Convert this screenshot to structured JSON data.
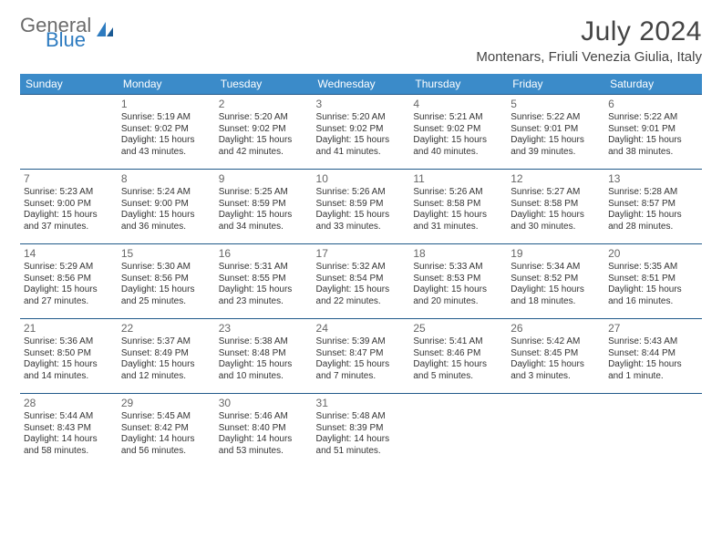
{
  "brand": {
    "line1": "General",
    "line2": "Blue"
  },
  "title": "July 2024",
  "location": "Montenars, Friuli Venezia Giulia, Italy",
  "colors": {
    "header_bg": "#3b8bc9",
    "header_text": "#ffffff",
    "row_border": "#215a8a",
    "daynum_color": "#666666",
    "body_text": "#333333",
    "logo_gray": "#6b6b6b",
    "logo_blue": "#2d7bc0",
    "page_bg": "#ffffff"
  },
  "fonts": {
    "title_size_pt": 22,
    "location_size_pt": 11,
    "weekday_size_pt": 9,
    "daynum_size_pt": 9,
    "body_size_pt": 7.5
  },
  "weekdays": [
    "Sunday",
    "Monday",
    "Tuesday",
    "Wednesday",
    "Thursday",
    "Friday",
    "Saturday"
  ],
  "weeks": [
    [
      null,
      {
        "n": "1",
        "sr": "5:19 AM",
        "ss": "9:02 PM",
        "dl": "15 hours and 43 minutes."
      },
      {
        "n": "2",
        "sr": "5:20 AM",
        "ss": "9:02 PM",
        "dl": "15 hours and 42 minutes."
      },
      {
        "n": "3",
        "sr": "5:20 AM",
        "ss": "9:02 PM",
        "dl": "15 hours and 41 minutes."
      },
      {
        "n": "4",
        "sr": "5:21 AM",
        "ss": "9:02 PM",
        "dl": "15 hours and 40 minutes."
      },
      {
        "n": "5",
        "sr": "5:22 AM",
        "ss": "9:01 PM",
        "dl": "15 hours and 39 minutes."
      },
      {
        "n": "6",
        "sr": "5:22 AM",
        "ss": "9:01 PM",
        "dl": "15 hours and 38 minutes."
      }
    ],
    [
      {
        "n": "7",
        "sr": "5:23 AM",
        "ss": "9:00 PM",
        "dl": "15 hours and 37 minutes."
      },
      {
        "n": "8",
        "sr": "5:24 AM",
        "ss": "9:00 PM",
        "dl": "15 hours and 36 minutes."
      },
      {
        "n": "9",
        "sr": "5:25 AM",
        "ss": "8:59 PM",
        "dl": "15 hours and 34 minutes."
      },
      {
        "n": "10",
        "sr": "5:26 AM",
        "ss": "8:59 PM",
        "dl": "15 hours and 33 minutes."
      },
      {
        "n": "11",
        "sr": "5:26 AM",
        "ss": "8:58 PM",
        "dl": "15 hours and 31 minutes."
      },
      {
        "n": "12",
        "sr": "5:27 AM",
        "ss": "8:58 PM",
        "dl": "15 hours and 30 minutes."
      },
      {
        "n": "13",
        "sr": "5:28 AM",
        "ss": "8:57 PM",
        "dl": "15 hours and 28 minutes."
      }
    ],
    [
      {
        "n": "14",
        "sr": "5:29 AM",
        "ss": "8:56 PM",
        "dl": "15 hours and 27 minutes."
      },
      {
        "n": "15",
        "sr": "5:30 AM",
        "ss": "8:56 PM",
        "dl": "15 hours and 25 minutes."
      },
      {
        "n": "16",
        "sr": "5:31 AM",
        "ss": "8:55 PM",
        "dl": "15 hours and 23 minutes."
      },
      {
        "n": "17",
        "sr": "5:32 AM",
        "ss": "8:54 PM",
        "dl": "15 hours and 22 minutes."
      },
      {
        "n": "18",
        "sr": "5:33 AM",
        "ss": "8:53 PM",
        "dl": "15 hours and 20 minutes."
      },
      {
        "n": "19",
        "sr": "5:34 AM",
        "ss": "8:52 PM",
        "dl": "15 hours and 18 minutes."
      },
      {
        "n": "20",
        "sr": "5:35 AM",
        "ss": "8:51 PM",
        "dl": "15 hours and 16 minutes."
      }
    ],
    [
      {
        "n": "21",
        "sr": "5:36 AM",
        "ss": "8:50 PM",
        "dl": "15 hours and 14 minutes."
      },
      {
        "n": "22",
        "sr": "5:37 AM",
        "ss": "8:49 PM",
        "dl": "15 hours and 12 minutes."
      },
      {
        "n": "23",
        "sr": "5:38 AM",
        "ss": "8:48 PM",
        "dl": "15 hours and 10 minutes."
      },
      {
        "n": "24",
        "sr": "5:39 AM",
        "ss": "8:47 PM",
        "dl": "15 hours and 7 minutes."
      },
      {
        "n": "25",
        "sr": "5:41 AM",
        "ss": "8:46 PM",
        "dl": "15 hours and 5 minutes."
      },
      {
        "n": "26",
        "sr": "5:42 AM",
        "ss": "8:45 PM",
        "dl": "15 hours and 3 minutes."
      },
      {
        "n": "27",
        "sr": "5:43 AM",
        "ss": "8:44 PM",
        "dl": "15 hours and 1 minute."
      }
    ],
    [
      {
        "n": "28",
        "sr": "5:44 AM",
        "ss": "8:43 PM",
        "dl": "14 hours and 58 minutes."
      },
      {
        "n": "29",
        "sr": "5:45 AM",
        "ss": "8:42 PM",
        "dl": "14 hours and 56 minutes."
      },
      {
        "n": "30",
        "sr": "5:46 AM",
        "ss": "8:40 PM",
        "dl": "14 hours and 53 minutes."
      },
      {
        "n": "31",
        "sr": "5:48 AM",
        "ss": "8:39 PM",
        "dl": "14 hours and 51 minutes."
      },
      null,
      null,
      null
    ]
  ],
  "labels": {
    "sunrise": "Sunrise:",
    "sunset": "Sunset:",
    "daylight": "Daylight:"
  }
}
